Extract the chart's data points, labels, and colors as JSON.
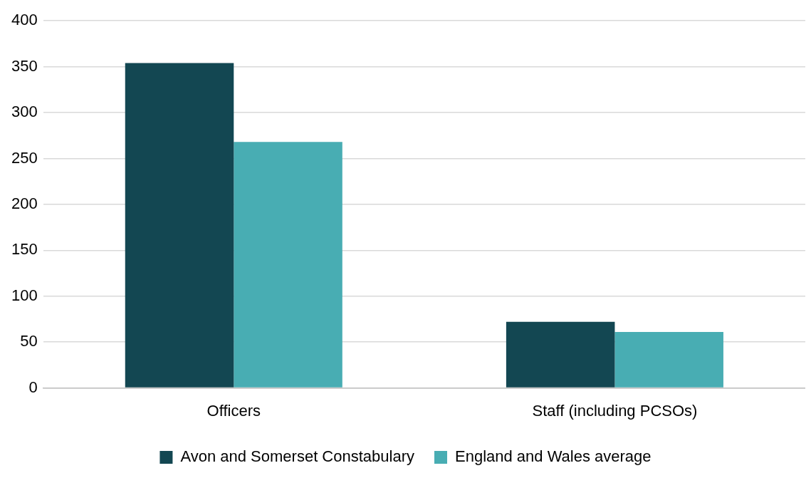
{
  "chart_data": {
    "type": "bar",
    "categories": [
      "Officers",
      "Staff (including PCSOs)"
    ],
    "series": [
      {
        "name": "Avon and Somerset Constabulary",
        "color": "#134752",
        "values": [
          354,
          72
        ]
      },
      {
        "name": "England and Wales average",
        "color": "#48adb3",
        "values": [
          268,
          61
        ]
      }
    ],
    "ylim": [
      0,
      400
    ],
    "yticks": [
      0,
      50,
      100,
      150,
      200,
      250,
      300,
      350,
      400
    ],
    "grid": "y",
    "legend": "bottom"
  }
}
